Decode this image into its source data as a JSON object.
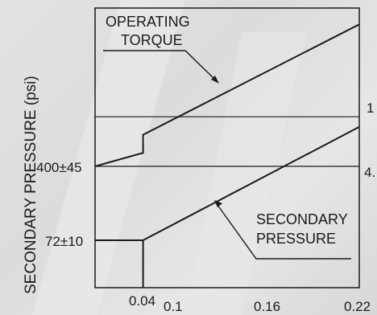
{
  "chart_data": {
    "type": "line",
    "ylabel": "SECONDARY PRESSURE (psi)",
    "xlabel": "",
    "xlim": [
      0,
      0.22
    ],
    "x_ticks": [
      "0.04",
      "0.1",
      "0.16",
      "0.22"
    ],
    "y_ticks": [
      {
        "value": 72,
        "label": "72±10"
      },
      {
        "value": 400,
        "label": "400±45"
      }
    ],
    "right_ticks": [
      "1",
      "4."
    ],
    "grid": false,
    "annotations": {
      "operating_torque": [
        "OPERATING",
        "TORQUE"
      ],
      "secondary_pressure": [
        "SECONDARY",
        "PRESSURE"
      ]
    },
    "series": [
      {
        "label": "OPERATING TORQUE",
        "points": [
          [
            0,
            400
          ],
          [
            0.04,
            460
          ],
          [
            0.04,
            540
          ],
          [
            0.22,
            1030
          ]
        ]
      },
      {
        "label": "SECONDARY PRESSURE",
        "points": [
          [
            0,
            72
          ],
          [
            0.04,
            72
          ],
          [
            0.22,
            575
          ]
        ]
      }
    ],
    "drop_line": {
      "x": 0.04,
      "from": 72
    },
    "horizontal_lines": [
      400,
      620
    ]
  }
}
